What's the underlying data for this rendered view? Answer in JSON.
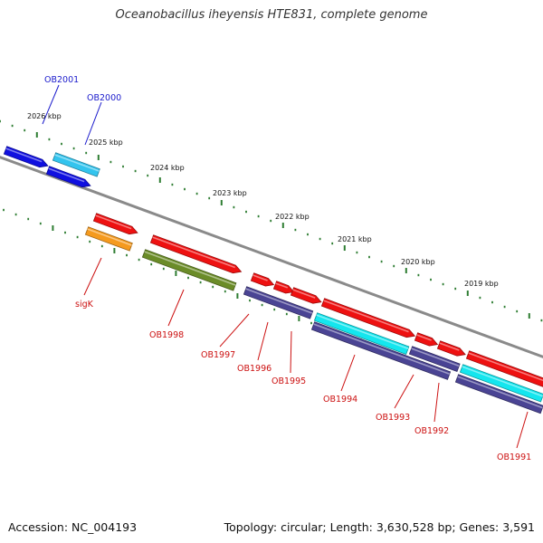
{
  "title": "Oceanobacillus iheyensis HTE831, complete genome",
  "footer": {
    "accession": "Accession: NC_004193",
    "topology": "Topology: circular; Length: 3,630,528 bp; Genes: 3,591"
  },
  "colors": {
    "backbone": "#8a8a8a",
    "tick": "#2e7d32",
    "blue_label": "#1a1acc",
    "red_label": "#cc1111",
    "blue": "#1010e0",
    "light_blue": "#33c4ee",
    "red": "#ee1111",
    "orange": "#f59a1e",
    "olive": "#6b8c28",
    "purple": "#4a4494",
    "cyan": "#14e6ee"
  },
  "scale_labels": [
    "2026 kbp",
    "2025 kbp",
    "2024 kbp",
    "2023 kbp",
    "2022 kbp",
    "2021 kbp",
    "2020 kbp",
    "2019 kbp"
  ],
  "gene_labels": {
    "top": [
      "OB2001",
      "OB2000"
    ],
    "bottom": [
      "sigK",
      "OB1998",
      "OB1997",
      "OB1996",
      "OB1995",
      "OB1994",
      "OB1993",
      "OB1992",
      "OB1991"
    ]
  }
}
